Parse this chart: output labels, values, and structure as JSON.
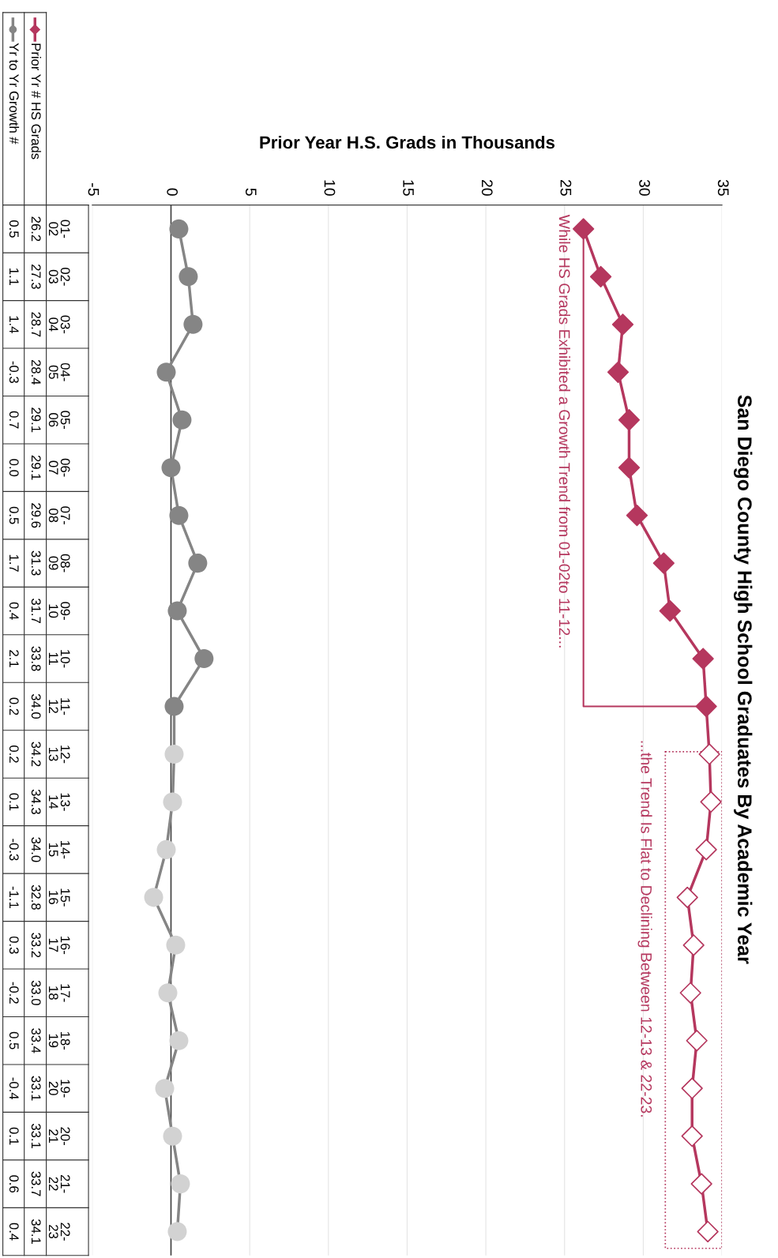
{
  "chart_data": {
    "type": "line",
    "orientation": "horizontal",
    "title": "San Diego County High School Graduates By Academic Year",
    "xlabel": "Prior Year H.S. Grads in Thousands",
    "categories": [
      "01-02",
      "02-03",
      "03-04",
      "04-05",
      "05-06",
      "06-07",
      "07-08",
      "08-09",
      "09-10",
      "10-11",
      "11-12",
      "12-13",
      "13-14",
      "14-15",
      "15-16",
      "16-17",
      "17-18",
      "18-19",
      "19-20",
      "20-21",
      "21-22",
      "22-23"
    ],
    "series": [
      {
        "name": "Prior Yr # HS Grads",
        "color": "#b5375e",
        "marker": "diamond",
        "values": [
          26.2,
          27.3,
          28.7,
          28.4,
          29.1,
          29.1,
          29.6,
          31.3,
          31.7,
          33.8,
          34.0,
          34.2,
          34.3,
          34.0,
          32.8,
          33.2,
          33.0,
          33.4,
          33.1,
          33.1,
          33.7,
          34.1
        ],
        "value_labels": [
          "26.2",
          "27.3",
          "28.7",
          "28.4",
          "29.1",
          "29.1",
          "29.6",
          "31.3",
          "31.7",
          "33.8",
          "34.0",
          "34.2",
          "34.3",
          "34.0",
          "32.8",
          "33.2",
          "33.0",
          "33.4",
          "33.1",
          "33.1",
          "33.7",
          "34.1"
        ],
        "colors": [
          "#b5375e",
          "#b5375e",
          "#b5375e",
          "#b5375e",
          "#b5375e",
          "#b5375e",
          "#b5375e",
          "#b5375e",
          "#b5375e",
          "#b5375e",
          "#b5375e",
          "#ffffff",
          "#ffffff",
          "#ffffff",
          "#ffffff",
          "#ffffff",
          "#ffffff",
          "#ffffff",
          "#ffffff",
          "#ffffff",
          "#ffffff",
          "#ffffff"
        ]
      },
      {
        "name": "Yr to Yr Growth #",
        "color": "#858585",
        "marker": "circle",
        "values": [
          0.5,
          1.1,
          1.4,
          -0.3,
          0.7,
          0.0,
          0.5,
          1.7,
          0.4,
          2.1,
          0.2,
          0.2,
          0.1,
          -0.3,
          -1.1,
          0.3,
          -0.2,
          0.5,
          -0.4,
          0.1,
          0.6,
          0.4
        ],
        "value_labels": [
          "0.5",
          "1.1",
          "1.4",
          "-0.3",
          "0.7",
          "0.0",
          "0.5",
          "1.7",
          "0.4",
          "2.1",
          "0.2",
          "0.2",
          "0.1",
          "-0.3",
          "-1.1",
          "0.3",
          "-0.2",
          "0.5",
          "-0.4",
          "0.1",
          "0.6",
          "0.4"
        ],
        "colors": [
          "#858585",
          "#858585",
          "#858585",
          "#858585",
          "#858585",
          "#858585",
          "#858585",
          "#858585",
          "#858585",
          "#858585",
          "#858585",
          "#d2d2d2",
          "#d2d2d2",
          "#d2d2d2",
          "#d2d2d2",
          "#d2d2d2",
          "#d2d2d2",
          "#d2d2d2",
          "#d2d2d2",
          "#d2d2d2",
          "#d2d2d2",
          "#d2d2d2"
        ]
      }
    ],
    "xlim": [
      -5,
      35
    ],
    "xticks": [
      -5,
      0,
      5,
      10,
      15,
      20,
      25,
      30,
      35
    ],
    "grid": "x",
    "line_style": "solid",
    "legend": "top left",
    "annotations": [
      "While HS Grads Exhibited a Growth Trend from 01-02to 11-12...",
      "...the Trend Is Flat to Declining Between 12-13 & 22-23."
    ]
  }
}
